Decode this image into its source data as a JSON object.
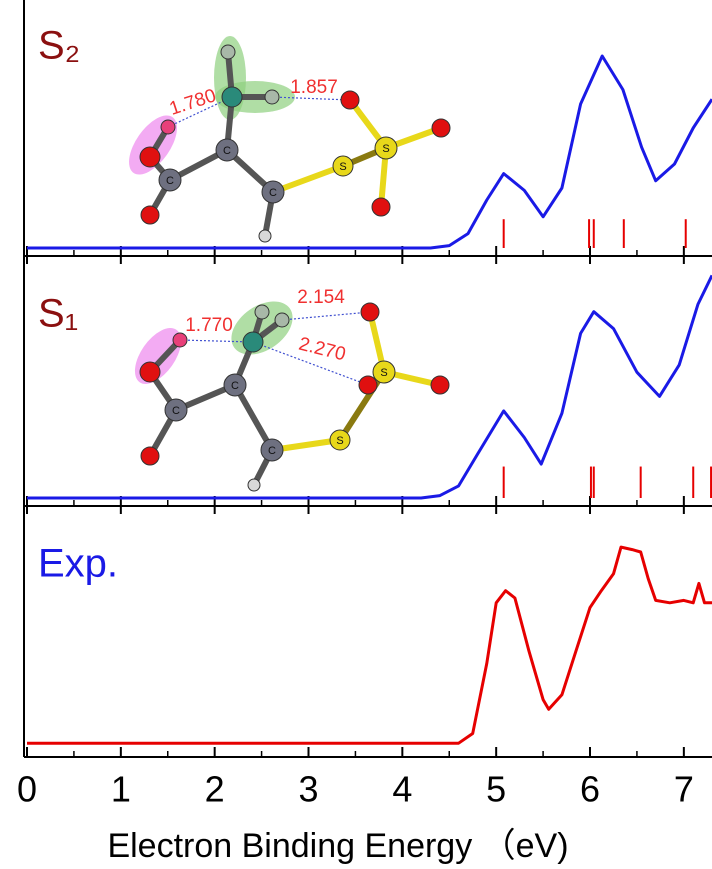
{
  "chart_data": [
    {
      "type": "line",
      "label": "S₂",
      "label_color": "#8b1010",
      "x": [
        0,
        4.3,
        4.5,
        4.7,
        4.9,
        5.08,
        5.3,
        5.5,
        5.7,
        5.9,
        6.13,
        6.35,
        6.55,
        6.7,
        6.9,
        7.1,
        7.3
      ],
      "values": [
        0,
        0,
        0.01,
        0.06,
        0.2,
        0.31,
        0.24,
        0.13,
        0.25,
        0.6,
        0.8,
        0.66,
        0.42,
        0.28,
        0.35,
        0.5,
        0.62
      ],
      "color": "#1a1ae6",
      "sticks": {
        "x": [
          5.08,
          5.99,
          6.04,
          6.36,
          7.02
        ],
        "values": [
          0.12,
          0.12,
          0.12,
          0.12,
          0.12
        ],
        "color": "#e60000"
      },
      "atoms": [
        "C",
        "C",
        "C",
        "S",
        "S"
      ],
      "annotations": [
        "1.780",
        "1.857"
      ],
      "xlim": [
        0,
        7.3
      ],
      "ylim": [
        0,
        1
      ],
      "xticks": [
        0,
        1,
        2,
        3,
        4,
        5,
        6,
        7
      ],
      "minor_xticks": [
        0.5,
        1.5,
        2.5,
        3.5,
        4.5,
        5.5,
        6.5
      ]
    },
    {
      "type": "line",
      "label": "S₁",
      "label_color": "#8b1010",
      "x": [
        0,
        4.2,
        4.4,
        4.6,
        4.8,
        5.08,
        5.3,
        5.48,
        5.7,
        5.9,
        6.04,
        6.25,
        6.5,
        6.74,
        6.95,
        7.15,
        7.3
      ],
      "values": [
        0,
        0,
        0.01,
        0.05,
        0.18,
        0.36,
        0.25,
        0.14,
        0.35,
        0.68,
        0.77,
        0.7,
        0.52,
        0.42,
        0.55,
        0.8,
        0.92
      ],
      "color": "#1a1ae6",
      "sticks": {
        "x": [
          5.08,
          6.01,
          6.04,
          6.54,
          7.1,
          7.29
        ],
        "values": [
          0.13,
          0.13,
          0.13,
          0.13,
          0.13,
          0.13
        ],
        "color": "#e60000"
      },
      "atoms": [
        "C",
        "C",
        "C",
        "S",
        "S"
      ],
      "annotations": [
        "1.770",
        "2.154",
        "2.270"
      ],
      "xlim": [
        0,
        7.3
      ],
      "ylim": [
        0,
        1
      ],
      "xticks": [
        0,
        1,
        2,
        3,
        4,
        5,
        6,
        7
      ],
      "minor_xticks": [
        0.5,
        1.5,
        2.5,
        3.5,
        4.5,
        5.5,
        6.5
      ]
    },
    {
      "type": "line",
      "label": "Exp.",
      "label_color": "#1a1ae6",
      "x": [
        0,
        2,
        4,
        4.6,
        4.75,
        4.9,
        5.0,
        5.1,
        5.2,
        5.35,
        5.5,
        5.56,
        5.7,
        5.85,
        6.0,
        6.12,
        6.25,
        6.33,
        6.45,
        6.54,
        6.62,
        6.7,
        6.85,
        7.0,
        7.1,
        7.16,
        7.22,
        7.3
      ],
      "values": [
        0.02,
        0.02,
        0.02,
        0.02,
        0.06,
        0.35,
        0.6,
        0.65,
        0.62,
        0.4,
        0.2,
        0.16,
        0.22,
        0.4,
        0.58,
        0.65,
        0.72,
        0.83,
        0.82,
        0.81,
        0.7,
        0.61,
        0.6,
        0.61,
        0.6,
        0.68,
        0.6,
        0.6
      ],
      "color": "#e60000",
      "xlabel": "Electron Binding Energy （eV)",
      "xlim": [
        0,
        7.3
      ],
      "ylim": [
        0,
        1
      ],
      "xticks": [
        0,
        1,
        2,
        3,
        4,
        5,
        6,
        7
      ],
      "minor_xticks": [
        0.5,
        1.5,
        2.5,
        3.5,
        4.5,
        5.5,
        6.5
      ]
    }
  ]
}
